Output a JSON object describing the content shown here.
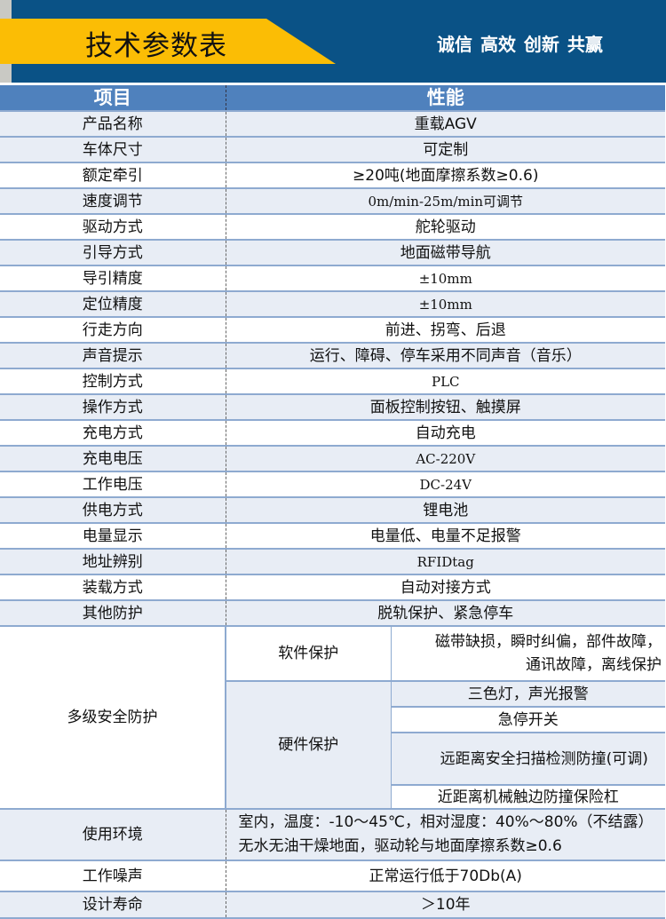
{
  "banner": {
    "title": "技术参数表",
    "slogan": "诚信 高效 创新 共赢",
    "colors": {
      "background": "#0a5286",
      "ribbon": "#fbbd05"
    }
  },
  "table": {
    "headers": [
      "项目",
      "性能"
    ],
    "rows": [
      {
        "item": "产品名称",
        "value": "重载AGV"
      },
      {
        "item": "车体尺寸",
        "value": "可定制"
      },
      {
        "item": "额定牵引",
        "value": "≥20吨(地面摩擦系数≥0.6)"
      },
      {
        "item": "速度调节",
        "value": "0m/min-25m/min可调节"
      },
      {
        "item": "驱动方式",
        "value": "舵轮驱动"
      },
      {
        "item": "引导方式",
        "value": "地面磁带导航"
      },
      {
        "item": "导引精度",
        "value": "±10mm"
      },
      {
        "item": "定位精度",
        "value": "±10mm"
      },
      {
        "item": "行走方向",
        "value": "前进、拐弯、后退"
      },
      {
        "item": "声音提示",
        "value": "运行、障碍、停车采用不同声音（音乐）"
      },
      {
        "item": "控制方式",
        "value": "PLC"
      },
      {
        "item": "操作方式",
        "value": "面板控制按钮、触摸屏"
      },
      {
        "item": "充电方式",
        "value": "自动充电"
      },
      {
        "item": "充电电压",
        "value": "AC-220V"
      },
      {
        "item": "工作电压",
        "value": "DC-24V"
      },
      {
        "item": "供电方式",
        "value": "锂电池"
      },
      {
        "item": "电量显示",
        "value": "电量低、电量不足报警"
      },
      {
        "item": "地址辨别",
        "value": "RFIDtag"
      },
      {
        "item": "装载方式",
        "value": "自动对接方式"
      },
      {
        "item": "其他防护",
        "value": "脱轨保护、紧急停车"
      }
    ],
    "safety": {
      "item": "多级安全防护",
      "software": {
        "label": "软件保护",
        "value": "磁带缺损，瞬时纠偏，部件故障，通讯故障，离线保护"
      },
      "hardware": {
        "label": "硬件保护",
        "values": [
          "三色灯，声光报警",
          "急停开关",
          "远距离安全扫描检测防撞(可调)",
          "近距离机械触边防撞保险杠"
        ]
      }
    },
    "tail": [
      {
        "item": "使用环境",
        "value": "室内，温度：-10～45℃，相对湿度：40%～80%（不结露）无水无油干燥地面，驱动轮与地面摩擦系数≥0.6"
      },
      {
        "item": "工作噪声",
        "value": "正常运行低于70Db(A)"
      },
      {
        "item": "设计寿命",
        "value": "＞10年"
      }
    ]
  }
}
